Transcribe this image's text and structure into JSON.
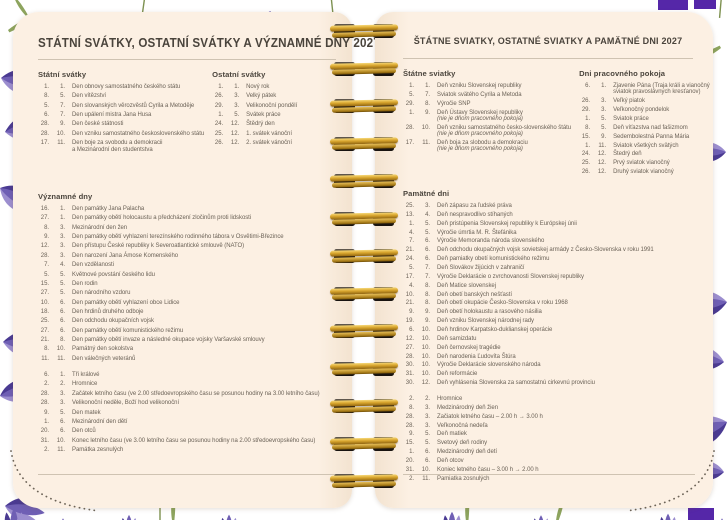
{
  "spiral": {
    "ring_count": 13
  },
  "colors": {
    "page_background": "#fbeee0",
    "text": "#6b6257",
    "heading_text": "#4a443c",
    "rule": "#cfc3b2",
    "spiral_gold": "#d9a62e",
    "spiral_hole": "#241f19",
    "flower_purple_deep": "#4a3a92",
    "flower_purple_mid": "#6f5fb4",
    "flower_purple_light": "#9c8ecf",
    "leaf_green": "#8da45e",
    "tape_purple": "#5527a8"
  },
  "left_page": {
    "title": "STÁTNÍ SVÁTKY, OSTATNÍ SVÁTKY A VÝZNAMNÉ DNY 2027",
    "statni_svatky": {
      "heading": "Státní svátky",
      "items": [
        {
          "d": "1.",
          "m": "1.",
          "t": "Den obnovy samostatného českého státu"
        },
        {
          "d": "8.",
          "m": "5.",
          "t": "Den vítězství"
        },
        {
          "d": "5.",
          "m": "7.",
          "t": "Den slovanských věrozvěstů Cyrila a Metoděje"
        },
        {
          "d": "6.",
          "m": "7.",
          "t": "Den upálení mistra Jana Husa"
        },
        {
          "d": "28.",
          "m": "9.",
          "t": "Den české státnosti"
        },
        {
          "d": "28.",
          "m": "10.",
          "t": "Den vzniku samostatného československého státu"
        },
        {
          "d": "17.",
          "m": "11.",
          "t": "Den boje za svobodu a demokracii",
          "t2": "a Mezinárodní den studentstva"
        }
      ]
    },
    "ostatni_svatky": {
      "heading": "Ostatní svátky",
      "items": [
        {
          "d": "1.",
          "m": "1.",
          "t": "Nový rok"
        },
        {
          "d": "26.",
          "m": "3.",
          "t": "Velký pátek"
        },
        {
          "d": "29.",
          "m": "3.",
          "t": "Velikonoční pondělí"
        },
        {
          "d": "1.",
          "m": "5.",
          "t": "Svátek práce"
        },
        {
          "d": "24.",
          "m": "12.",
          "t": "Štědrý den"
        },
        {
          "d": "25.",
          "m": "12.",
          "t": "1. svátek vánoční"
        },
        {
          "d": "26.",
          "m": "12.",
          "t": "2. svátek vánoční"
        }
      ]
    },
    "vyznamne_dny": {
      "heading": "Významné dny",
      "items": [
        {
          "d": "16.",
          "m": "1.",
          "t": "Den památky Jana Palacha"
        },
        {
          "d": "27.",
          "m": "1.",
          "t": "Den památky obětí holocaustu a předcházení zločinům proti lidskosti"
        },
        {
          "d": "8.",
          "m": "3.",
          "t": "Mezinárodní den žen"
        },
        {
          "d": "9.",
          "m": "3.",
          "t": "Den památky obětí vyhlazení terezínského rodinného tábora v Osvětimi-Březince"
        },
        {
          "d": "12.",
          "m": "3.",
          "t": "Den přístupu České republiky k Severoatlantické smlouvě (NATO)"
        },
        {
          "d": "28.",
          "m": "3.",
          "t": "Den narození Jana Ámose Komenského"
        },
        {
          "d": "7.",
          "m": "4.",
          "t": "Den vzdělanosti"
        },
        {
          "d": "5.",
          "m": "5.",
          "t": "Květnové povstání českého lidu"
        },
        {
          "d": "15.",
          "m": "5.",
          "t": "Den rodin"
        },
        {
          "d": "27.",
          "m": "5.",
          "t": "Den národního vzdoru"
        },
        {
          "d": "10.",
          "m": "6.",
          "t": "Den památky obětí vyhlazení obce Lidice"
        },
        {
          "d": "18.",
          "m": "6.",
          "t": "Den hrdinů druhého odboje"
        },
        {
          "d": "25.",
          "m": "6.",
          "t": "Den odchodu okupačních vojsk"
        },
        {
          "d": "27.",
          "m": "6.",
          "t": "Den památky obětí komunistického režimu"
        },
        {
          "d": "21.",
          "m": "8.",
          "t": "Den památky obětí invaze a následné okupace vojsky Varšavské smlouvy"
        },
        {
          "d": "8.",
          "m": "10.",
          "t": "Památný den sokolstva"
        },
        {
          "d": "11.",
          "m": "11.",
          "t": "Den válečných veteránů"
        }
      ],
      "items2": [
        {
          "d": "6.",
          "m": "1.",
          "t": "Tři králové"
        },
        {
          "d": "2.",
          "m": "2.",
          "t": "Hromnice"
        },
        {
          "d": "28.",
          "m": "3.",
          "t": "Začátek letního času (ve 2.00 středoevropského času se posunou hodiny na 3.00 letního času)"
        },
        {
          "d": "28.",
          "m": "3.",
          "t": "Velikonoční neděle, Boží hod velikonoční"
        },
        {
          "d": "9.",
          "m": "5.",
          "t": "Den matek"
        },
        {
          "d": "1.",
          "m": "6.",
          "t": "Mezinárodní den dětí"
        },
        {
          "d": "20.",
          "m": "6.",
          "t": "Den otců"
        },
        {
          "d": "31.",
          "m": "10.",
          "t": "Konec letního času (ve 3.00 letního času se posunou hodiny na 2.00 středoevropského času)"
        },
        {
          "d": "2.",
          "m": "11.",
          "t": "Památka zesnulých"
        }
      ]
    }
  },
  "right_page": {
    "title": "ŠTÁTNE SVIATKY, OSTATNÉ SVIATKY A PAMÄTNÉ DNI 2027",
    "statne_sviatky": {
      "heading": "Štátne sviatky",
      "items": [
        {
          "d": "1.",
          "m": "1.",
          "t": "Deň vzniku Slovenskej republiky"
        },
        {
          "d": "5.",
          "m": "7.",
          "t": "Sviatok svätého Cyrila a Metoda"
        },
        {
          "d": "29.",
          "m": "8.",
          "t": "Výročie SNP"
        },
        {
          "d": "1.",
          "m": "9.",
          "t": "Deň Ústavy Slovenskej republiky",
          "n": "(nie je dňom pracovného pokoja)"
        },
        {
          "d": "28.",
          "m": "10.",
          "t": "Deň vzniku samostatného česko-slovenského štátu",
          "n": "(nie je dňom pracovného pokoja)"
        },
        {
          "d": "17.",
          "m": "11.",
          "t": "Deň boja za slobodu a demokraciu",
          "n": "(nie je dňom pracovného pokoja)"
        }
      ]
    },
    "dni_pracovneho_pokoja": {
      "heading": "Dni pracovného pokoja",
      "items": [
        {
          "d": "6.",
          "m": "1.",
          "t": "Zjavenie Pána (Traja králi a vianočný",
          "t2": "sviatok pravoslávnych kresťanov)"
        },
        {
          "d": "26.",
          "m": "3.",
          "t": "Veľký piatok"
        },
        {
          "d": "29.",
          "m": "3.",
          "t": "Veľkonočný pondelok"
        },
        {
          "d": "1.",
          "m": "5.",
          "t": "Sviatok práce"
        },
        {
          "d": "8.",
          "m": "5.",
          "t": "Deň víťazstva nad fašizmom"
        },
        {
          "d": "15.",
          "m": "9.",
          "t": "Sedembolestná Panna Mária"
        },
        {
          "d": "1.",
          "m": "11.",
          "t": "Sviatok všetkých svätých"
        },
        {
          "d": "24.",
          "m": "12.",
          "t": "Štedrý deň"
        },
        {
          "d": "25.",
          "m": "12.",
          "t": "Prvý sviatok vianočný"
        },
        {
          "d": "26.",
          "m": "12.",
          "t": "Druhý sviatok vianočný"
        }
      ]
    },
    "pamatne_dni": {
      "heading": "Pamätné dni",
      "items": [
        {
          "d": "25.",
          "m": "3.",
          "t": "Deň zápasu za ľudské práva"
        },
        {
          "d": "13.",
          "m": "4.",
          "t": "Deň nespravodlivo stíhaných"
        },
        {
          "d": "1.",
          "m": "5.",
          "t": "Deň pristúpenia Slovenskej republiky k Európskej únii"
        },
        {
          "d": "4.",
          "m": "5.",
          "t": "Výročie úmrtia M. R. Štefánika"
        },
        {
          "d": "7.",
          "m": "6.",
          "t": "Výročie Memoranda národa slovenského"
        },
        {
          "d": "21.",
          "m": "6.",
          "t": "Deň odchodu okupačných vojsk sovietskej armády z Česko-Slovenska v roku 1991"
        },
        {
          "d": "24.",
          "m": "6.",
          "t": "Deň pamiatky obetí komunistického režimu"
        },
        {
          "d": "5.",
          "m": "7.",
          "t": "Deň Slovákov žijúcich v zahraničí"
        },
        {
          "d": "17.",
          "m": "7.",
          "t": "Výročie Deklarácie o zvrchovanosti Slovenskej republiky"
        },
        {
          "d": "4.",
          "m": "8.",
          "t": "Deň Matice slovenskej"
        },
        {
          "d": "10.",
          "m": "8.",
          "t": "Deň obetí banských nešťastí"
        },
        {
          "d": "21.",
          "m": "8.",
          "t": "Deň obetí okupácie Česko-Slovenska v roku 1968"
        },
        {
          "d": "9.",
          "m": "9.",
          "t": "Deň obetí holokaustu a rasového násilia"
        },
        {
          "d": "19.",
          "m": "9.",
          "t": "Deň vzniku Slovenskej národnej rady"
        },
        {
          "d": "6.",
          "m": "10.",
          "t": "Deň hrdinov Karpatsko-duklianskej operácie"
        },
        {
          "d": "12.",
          "m": "10.",
          "t": "Deň samizdatu"
        },
        {
          "d": "27.",
          "m": "10.",
          "t": "Deň černovskej tragédie"
        },
        {
          "d": "28.",
          "m": "10.",
          "t": "Deň narodenia Ľudovíta Štúra"
        },
        {
          "d": "30.",
          "m": "10.",
          "t": "Výročie Deklarácie slovenského národa"
        },
        {
          "d": "31.",
          "m": "10.",
          "t": "Deň reformácie"
        },
        {
          "d": "30.",
          "m": "12.",
          "t": "Deň vyhlásenia Slovenska za samostatnú cirkevnú provinciu"
        }
      ],
      "items2": [
        {
          "d": "2.",
          "m": "2.",
          "t": "Hromnice"
        },
        {
          "d": "8.",
          "m": "3.",
          "t": "Medzinárodný deň žien"
        },
        {
          "d": "28.",
          "m": "3.",
          "t": "Začiatok letného času – 2.00 h → 3.00 h"
        },
        {
          "d": "28.",
          "m": "3.",
          "t": "Veľkonočná nedeľa"
        },
        {
          "d": "9.",
          "m": "5.",
          "t": "Deň matiek"
        },
        {
          "d": "15.",
          "m": "5.",
          "t": "Svetový deň rodiny"
        },
        {
          "d": "1.",
          "m": "6.",
          "t": "Medzinárodný deň detí"
        },
        {
          "d": "20.",
          "m": "6.",
          "t": "Deň otcov"
        },
        {
          "d": "31.",
          "m": "10.",
          "t": "Koniec letného času – 3.00 h → 2.00 h"
        },
        {
          "d": "2.",
          "m": "11.",
          "t": "Pamiatka zosnulých"
        }
      ]
    }
  }
}
